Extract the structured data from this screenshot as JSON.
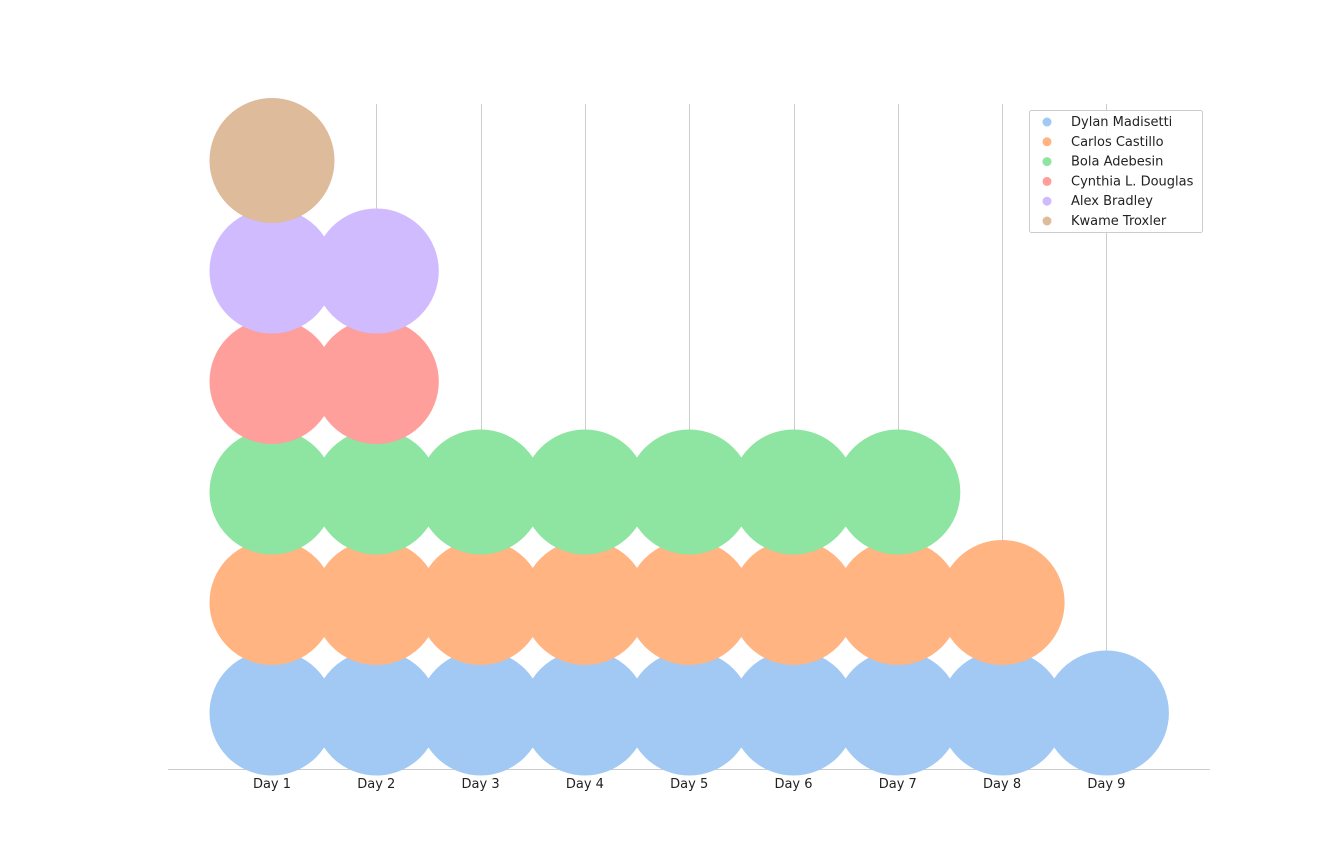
{
  "chart_data": {
    "type": "scatter",
    "title": "",
    "xlabel": "",
    "ylabel": "",
    "categories": [
      "Day 1",
      "Day 2",
      "Day 3",
      "Day 4",
      "Day 5",
      "Day 6",
      "Day 7",
      "Day 8",
      "Day 9"
    ],
    "grid": "vertical",
    "legend_position": "top-right",
    "series": [
      {
        "name": "Dylan Madisetti",
        "color": "#a1c9f4",
        "avatar": "silhouette-photo",
        "counts": [
          1,
          1,
          1,
          1,
          1,
          1,
          1,
          1,
          1
        ]
      },
      {
        "name": "Carlos Castillo",
        "color": "#ffb482",
        "avatar": "person-laptop-photo",
        "counts": [
          1,
          1,
          1,
          1,
          1,
          1,
          1,
          1,
          0
        ]
      },
      {
        "name": "Bola Adebesin",
        "color": "#8de5a1",
        "avatar": "power-logo",
        "counts": [
          1,
          1,
          1,
          1,
          1,
          1,
          1,
          0,
          0
        ]
      },
      {
        "name": "Cynthia L. Douglas",
        "color": "#ff9f9b",
        "avatar": "power-logo",
        "counts": [
          1,
          1,
          0,
          0,
          0,
          0,
          0,
          0,
          0
        ]
      },
      {
        "name": "Alex Bradley",
        "color": "#d0bbff",
        "avatar": "power-logo",
        "counts": [
          1,
          1,
          0,
          0,
          0,
          0,
          0,
          0,
          0
        ]
      },
      {
        "name": "Kwame Troxler",
        "color": "#debb9b",
        "avatar": "power-logo",
        "counts": [
          1,
          0,
          0,
          0,
          0,
          0,
          0,
          0,
          0
        ]
      }
    ]
  }
}
